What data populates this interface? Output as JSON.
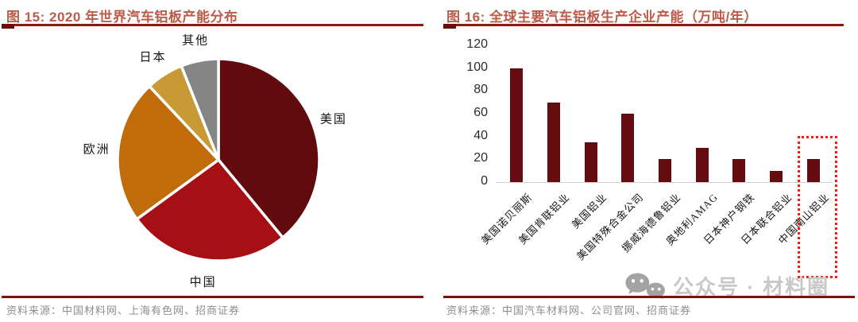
{
  "figures": [
    {
      "title": "图 15: 2020 年世界汽车铝板产能分布",
      "source": "资料来源：中国材料网、上海有色网、招商证券"
    },
    {
      "title": "图 16: 全球主要汽车铝板生产企业产能（万吨/年）",
      "source": "资料来源：中国汽车材料网、公司官网、招商证券"
    }
  ],
  "watermark": {
    "icon": "wechat-icon",
    "text": "公众号 · 材料圈"
  },
  "colors": {
    "title": "#bc5b49",
    "title_underline": "#8e190e",
    "underline_stub": "#6b0e09",
    "divider": "#7c140e",
    "source": "#8d8d8d",
    "axis_label": "#2b2b2b",
    "baseline": "#cfcfcf",
    "highlight_box": "#f01f14",
    "watermark_text": "#c8c8c8",
    "watermark_icon": "#a3a3a3"
  },
  "chart_data": [
    {
      "type": "pie",
      "title": "2020 年世界汽车铝板产能分布",
      "labels": [
        "美国",
        "中国",
        "欧洲",
        "日本",
        "其他"
      ],
      "values": [
        39,
        26,
        23,
        6,
        6
      ],
      "values_note": "share estimated from slice angles, percent",
      "colors": [
        "#620b0e",
        "#a60f13",
        "#c06c0a",
        "#c79a36",
        "#858585"
      ],
      "start_angle_deg": 0,
      "direction": "clockwise",
      "legend": "direct-labels-outside"
    },
    {
      "type": "bar",
      "title": "全球主要汽车铝板生产企业产能（万吨/年）",
      "categories": [
        "美国诺贝丽斯",
        "美国肯联铝业",
        "美国铝业",
        "美国特殊合金公司",
        "挪威海德鲁铝业",
        "奥地利AMAG",
        "日本神户钢铁",
        "日本联合铝业",
        "中国南山铝业"
      ],
      "values": [
        100,
        70,
        35,
        60,
        20,
        30,
        20,
        10,
        20
      ],
      "xlabel": "",
      "ylabel": "万吨/年",
      "ylim": [
        0,
        120
      ],
      "yticks": [
        0,
        20,
        40,
        60,
        80,
        100,
        120
      ],
      "bar_color": "#650c10",
      "grid": false,
      "highlight": {
        "category": "中国南山铝业",
        "style": "red-dotted-box"
      }
    }
  ]
}
